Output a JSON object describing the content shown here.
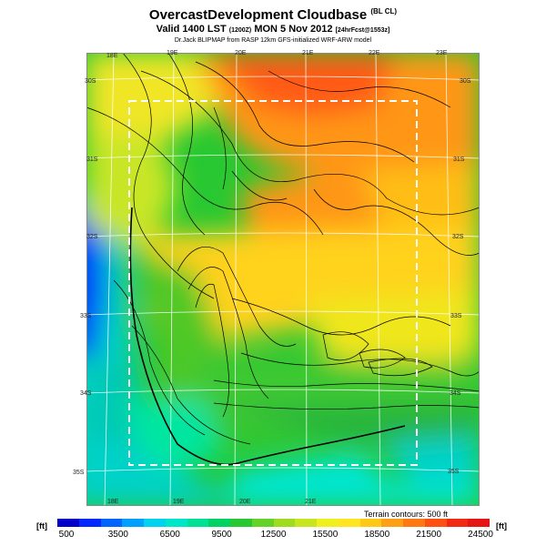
{
  "header": {
    "title": "OvercastDevelopment Cloudbase",
    "title_suffix": "(BL CL)",
    "valid_main": "Valid 1400 LST",
    "valid_code": "(1200Z)",
    "valid_date": "MON 5 Nov 2012",
    "valid_note": "[24hrFcst@1553z]",
    "credit": "Dr.Jack BLIPMAP from RASP 12km GFS-initialized WRF-ARW model"
  },
  "map": {
    "lon_top": [
      "18E",
      "19E",
      "20E",
      "21E",
      "22E",
      "23E"
    ],
    "lon_bottom": [
      "18E",
      "19E",
      "20E",
      "21E"
    ],
    "lat_left": [
      "30S",
      "31S",
      "32S",
      "33S",
      "34S",
      "35S"
    ],
    "lat_right": [
      "30S",
      "31S",
      "32S",
      "33S",
      "34S",
      "35S"
    ],
    "terrain_note": "Terrain contours: 500 ft"
  },
  "colorbar": {
    "unit_left": "[ft]",
    "unit_right": "[ft]",
    "ticks": [
      "500",
      "3500",
      "6500",
      "9500",
      "12500",
      "15500",
      "18500",
      "21500",
      "24500"
    ],
    "colors": [
      "#0000c8",
      "#0028ff",
      "#0064ff",
      "#00a0ff",
      "#00d2f0",
      "#00e6c8",
      "#00e196",
      "#00d264",
      "#28c832",
      "#64d228",
      "#a0dc1e",
      "#c8e61e",
      "#f0f01e",
      "#ffe61e",
      "#ffc814",
      "#ffa014",
      "#ff7814",
      "#ff5014",
      "#f02814",
      "#e61414"
    ]
  }
}
